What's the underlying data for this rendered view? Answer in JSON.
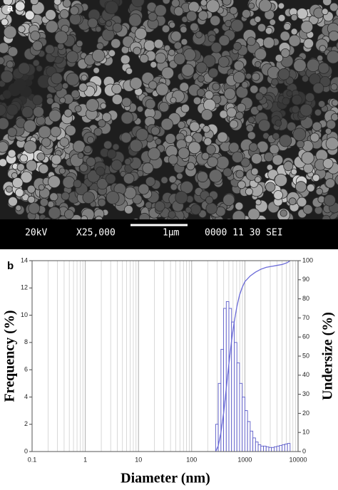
{
  "panel_a": {
    "label": "a",
    "info_bar": [
      "20kV",
      "X25,000",
      "1μm",
      "0000 11 30 SEI"
    ]
  },
  "chart_data": {
    "type": "histogram",
    "label": "b",
    "xlabel": "Diameter (nm)",
    "ylabel": "Frequency (%)",
    "y2label": "Undersize (%)",
    "log_x": true,
    "grid": "x",
    "xlim": [
      0.1,
      10000
    ],
    "xticks": [
      0.1,
      1,
      10,
      100,
      1000,
      10000
    ],
    "x_minor_ticks": [
      0.2,
      0.3,
      0.4,
      0.5,
      0.6,
      0.7,
      0.8,
      0.9,
      2,
      3,
      4,
      5,
      6,
      7,
      8,
      9,
      20,
      30,
      40,
      50,
      60,
      70,
      80,
      90,
      200,
      300,
      400,
      500,
      600,
      700,
      800,
      900,
      2000,
      3000,
      4000,
      5000,
      6000,
      7000,
      8000,
      9000
    ],
    "ylim": [
      0,
      14
    ],
    "yticks": [
      0,
      2,
      4,
      6,
      8,
      10,
      12,
      14
    ],
    "y2lim": [
      0,
      100
    ],
    "y2ticks": [
      0,
      10,
      20,
      30,
      40,
      50,
      60,
      70,
      80,
      90,
      100
    ],
    "bins": [
      282,
      316,
      355,
      398,
      447,
      501,
      562,
      631,
      708,
      794,
      891,
      1000,
      1122,
      1259,
      1413,
      1585,
      1778,
      1995,
      2239,
      2512,
      2818,
      3162,
      3548,
      3981,
      4467,
      5012,
      5623,
      6310,
      7079
    ],
    "values": [
      2,
      5,
      7.5,
      10.5,
      11,
      10.5,
      9.5,
      8,
      6.5,
      5,
      4,
      3,
      2.2,
      1.5,
      1,
      0.7,
      0.5,
      0.4,
      0.4,
      0.35,
      0.3,
      0.3,
      0.35,
      0.4,
      0.45,
      0.5,
      0.55,
      0.6
    ],
    "color": "#5b5bc8",
    "line": {
      "axis": "y2",
      "color": "#6a6ad8",
      "x": [
        282,
        316,
        355,
        398,
        447,
        501,
        562,
        631,
        708,
        794,
        891,
        1000,
        1259,
        1585,
        1995,
        2512,
        3162,
        3981,
        5012,
        6310,
        7079
      ],
      "values": [
        0,
        3,
        10,
        20,
        33,
        46,
        58,
        68,
        76,
        82,
        86,
        89,
        92,
        94,
        95.5,
        96.5,
        97,
        97.5,
        98,
        99,
        100
      ]
    }
  }
}
